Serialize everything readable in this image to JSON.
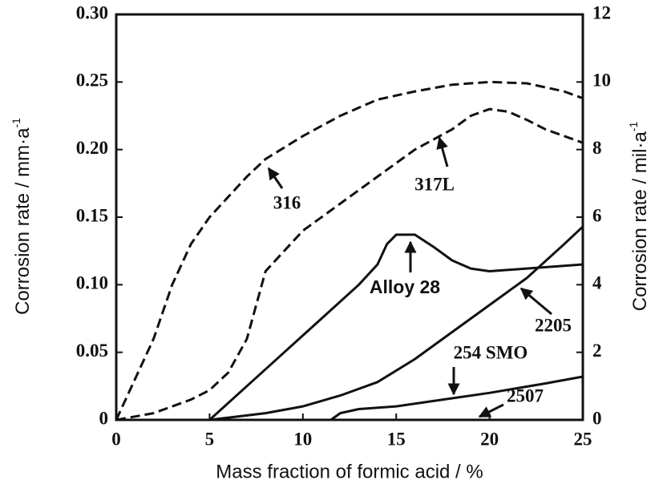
{
  "chart_data": {
    "type": "line",
    "xlabel": "Mass fraction of formic acid / %",
    "ylabel": "Corrosion rate / mm·a",
    "ylabel_sup": "-1",
    "y2label": "Corrosion rate / mil·a",
    "y2label_sup": "-1",
    "xlim": [
      0,
      25
    ],
    "xticks": [
      0,
      5,
      10,
      15,
      20,
      25
    ],
    "ylim": [
      0,
      0.3
    ],
    "yticks": [
      {
        "value": 0,
        "label": "0"
      },
      {
        "value": 0.05,
        "label": "0.05"
      },
      {
        "value": 0.1,
        "label": "0.10"
      },
      {
        "value": 0.15,
        "label": "0.15"
      },
      {
        "value": 0.2,
        "label": "0.20"
      },
      {
        "value": 0.25,
        "label": "0.25"
      },
      {
        "value": 0.3,
        "label": "0.30"
      }
    ],
    "y2lim": [
      0,
      12
    ],
    "y2ticks": [
      0,
      2,
      4,
      6,
      8,
      10,
      12
    ],
    "series": [
      {
        "name": "316",
        "color": "#111111",
        "dashed": true,
        "x": [
          0,
          1,
          2,
          3,
          4,
          5,
          6,
          7,
          8,
          10,
          12,
          14,
          16,
          18,
          20,
          22,
          24,
          25
        ],
        "values": [
          0,
          0.03,
          0.06,
          0.1,
          0.13,
          0.15,
          0.165,
          0.18,
          0.193,
          0.21,
          0.225,
          0.237,
          0.243,
          0.248,
          0.25,
          0.249,
          0.243,
          0.238
        ]
      },
      {
        "name": "317L",
        "color": "#111111",
        "dashed": true,
        "x": [
          0,
          2,
          4,
          5,
          6,
          7,
          7.5,
          8,
          9,
          10,
          12,
          14,
          16,
          18,
          19,
          20,
          21,
          22,
          23,
          24,
          25
        ],
        "values": [
          0,
          0.005,
          0.015,
          0.022,
          0.035,
          0.06,
          0.085,
          0.11,
          0.125,
          0.14,
          0.16,
          0.18,
          0.2,
          0.215,
          0.225,
          0.23,
          0.228,
          0.222,
          0.215,
          0.21,
          0.205
        ]
      },
      {
        "name": "Alloy 28",
        "color": "#111111",
        "dashed": false,
        "x": [
          5,
          7,
          9,
          11,
          13,
          14,
          14.5,
          15,
          16,
          17,
          18,
          19,
          20,
          22,
          25
        ],
        "values": [
          0,
          0.025,
          0.05,
          0.075,
          0.1,
          0.115,
          0.13,
          0.137,
          0.137,
          0.128,
          0.118,
          0.112,
          0.11,
          0.112,
          0.115
        ]
      },
      {
        "name": "2205",
        "color": "#111111",
        "dashed": false,
        "x": [
          5,
          8,
          10,
          12,
          14,
          16,
          18,
          20,
          22,
          24,
          25
        ],
        "values": [
          0,
          0.005,
          0.01,
          0.018,
          0.028,
          0.045,
          0.065,
          0.085,
          0.105,
          0.13,
          0.143
        ]
      },
      {
        "name": "254 SMO",
        "color": "#111111",
        "dashed": false,
        "x": [
          11.5,
          12,
          13,
          15,
          17,
          20,
          23,
          25
        ],
        "values": [
          0,
          0.005,
          0.008,
          0.01,
          0.014,
          0.02,
          0.027,
          0.032
        ]
      }
    ],
    "annotations": [
      "316",
      "317L",
      "Alloy 28",
      "2205",
      "254 SMO",
      "2507"
    ]
  }
}
